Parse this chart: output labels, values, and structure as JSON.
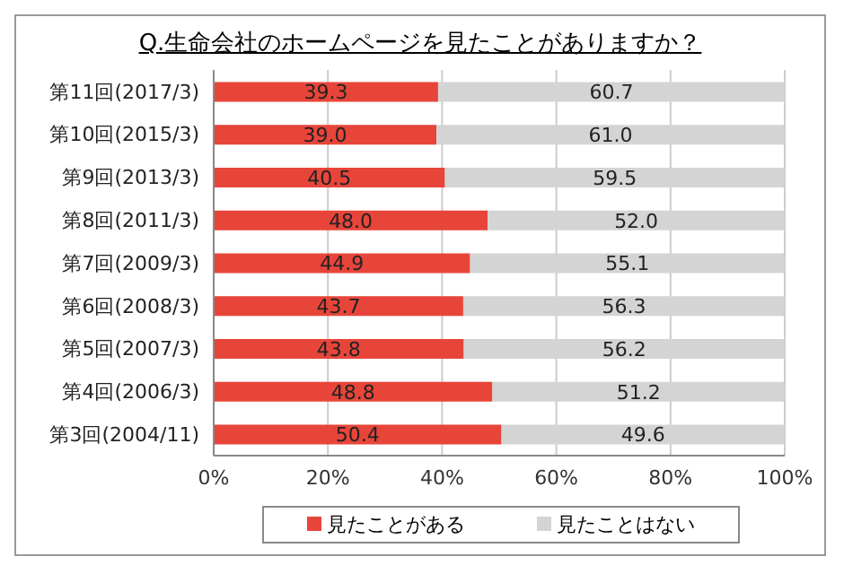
{
  "chart_data": {
    "type": "bar",
    "orientation": "horizontal",
    "stacked": true,
    "title": "Q.生命会社のホームページを見たことがありますか？",
    "categories": [
      "第11回(2017/3)",
      "第10回(2015/3)",
      "第9回(2013/3)",
      "第8回(2011/3)",
      "第7回(2009/3)",
      "第6回(2008/3)",
      "第5回(2007/3)",
      "第4回(2006/3)",
      "第3回(2004/11)"
    ],
    "series": [
      {
        "name": "見たことがある",
        "color": "#e8453a",
        "values": [
          39.3,
          39.0,
          40.5,
          48.0,
          44.9,
          43.7,
          43.8,
          48.8,
          50.4
        ],
        "value_labels": [
          "39.3",
          "39.0",
          "40.5",
          "48.0",
          "44.9",
          "43.7",
          "43.8",
          "48.8",
          "50.4"
        ]
      },
      {
        "name": "見たことはない",
        "color": "#d4d4d4",
        "values": [
          60.7,
          61.0,
          59.5,
          52.0,
          55.1,
          56.3,
          56.2,
          51.2,
          49.6
        ],
        "value_labels": [
          "60.7",
          "61.0",
          "59.5",
          "52.0",
          "55.1",
          "56.3",
          "56.2",
          "51.2",
          "49.6"
        ]
      }
    ],
    "xlim": [
      0,
      100
    ],
    "xticks": [
      {
        "value": 0,
        "label": "0%"
      },
      {
        "value": 20,
        "label": "20%"
      },
      {
        "value": 40,
        "label": "40%"
      },
      {
        "value": 60,
        "label": "60%"
      },
      {
        "value": 80,
        "label": "80%"
      },
      {
        "value": 100,
        "label": "100%"
      }
    ],
    "grid": "x",
    "legend": "bottom"
  }
}
